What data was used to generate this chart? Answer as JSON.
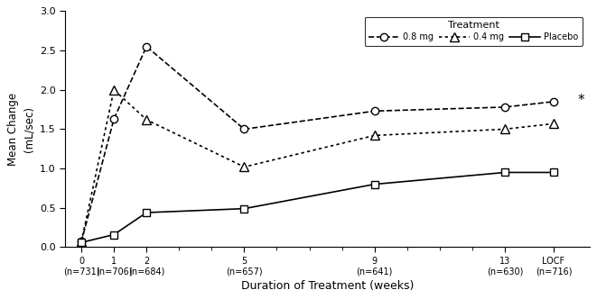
{
  "x_positions": [
    0,
    1,
    2,
    5,
    9,
    13,
    14.5
  ],
  "x_tick_vals_labeled": [
    0,
    1,
    2,
    5,
    9,
    13,
    14.5
  ],
  "x_labels": [
    "0\n(n=731)",
    "1\n(n=706)",
    "2\n(n=684)",
    "5\n(n=657)",
    "9\n(n=641)",
    "13\n(n=630)",
    "LOCF\n(n=716)"
  ],
  "line_08mg": [
    0.07,
    1.63,
    2.55,
    1.5,
    1.73,
    1.78,
    1.85
  ],
  "line_04mg": [
    0.07,
    2.0,
    1.62,
    1.02,
    1.42,
    1.5,
    1.57
  ],
  "line_placebo": [
    0.06,
    0.16,
    0.44,
    0.49,
    0.8,
    0.95,
    0.95
  ],
  "color_08mg": "#000000",
  "color_04mg": "#000000",
  "color_placebo": "#000000",
  "linestyle_08mg": "--",
  "linestyle_04mg": ":",
  "linestyle_placebo": "-",
  "marker_08mg": "o",
  "marker_04mg": "^",
  "marker_placebo": "s",
  "markersize_08mg": 6,
  "markersize_04mg": 7,
  "markersize_placebo": 6,
  "linewidth": 1.2,
  "label_08mg": "0.8 mg",
  "label_04mg": "0.4 mg",
  "label_placebo": "Placebo",
  "ylabel_main": "Mean Change",
  "ylabel_sub": "(mL/sec)",
  "xlabel": "Duration of Treatment (weeks)",
  "legend_title": "Treatment",
  "ylim": [
    0.0,
    3.0
  ],
  "yticks": [
    0.0,
    0.5,
    1.0,
    1.5,
    2.0,
    2.5,
    3.0
  ],
  "xlim_left": -0.5,
  "xlim_right": 15.6,
  "background_color": "#ffffff",
  "asterisk_x": 15.25,
  "asterisk_y": 1.87,
  "figwidth": 6.61,
  "figheight": 3.32,
  "dpi": 100
}
